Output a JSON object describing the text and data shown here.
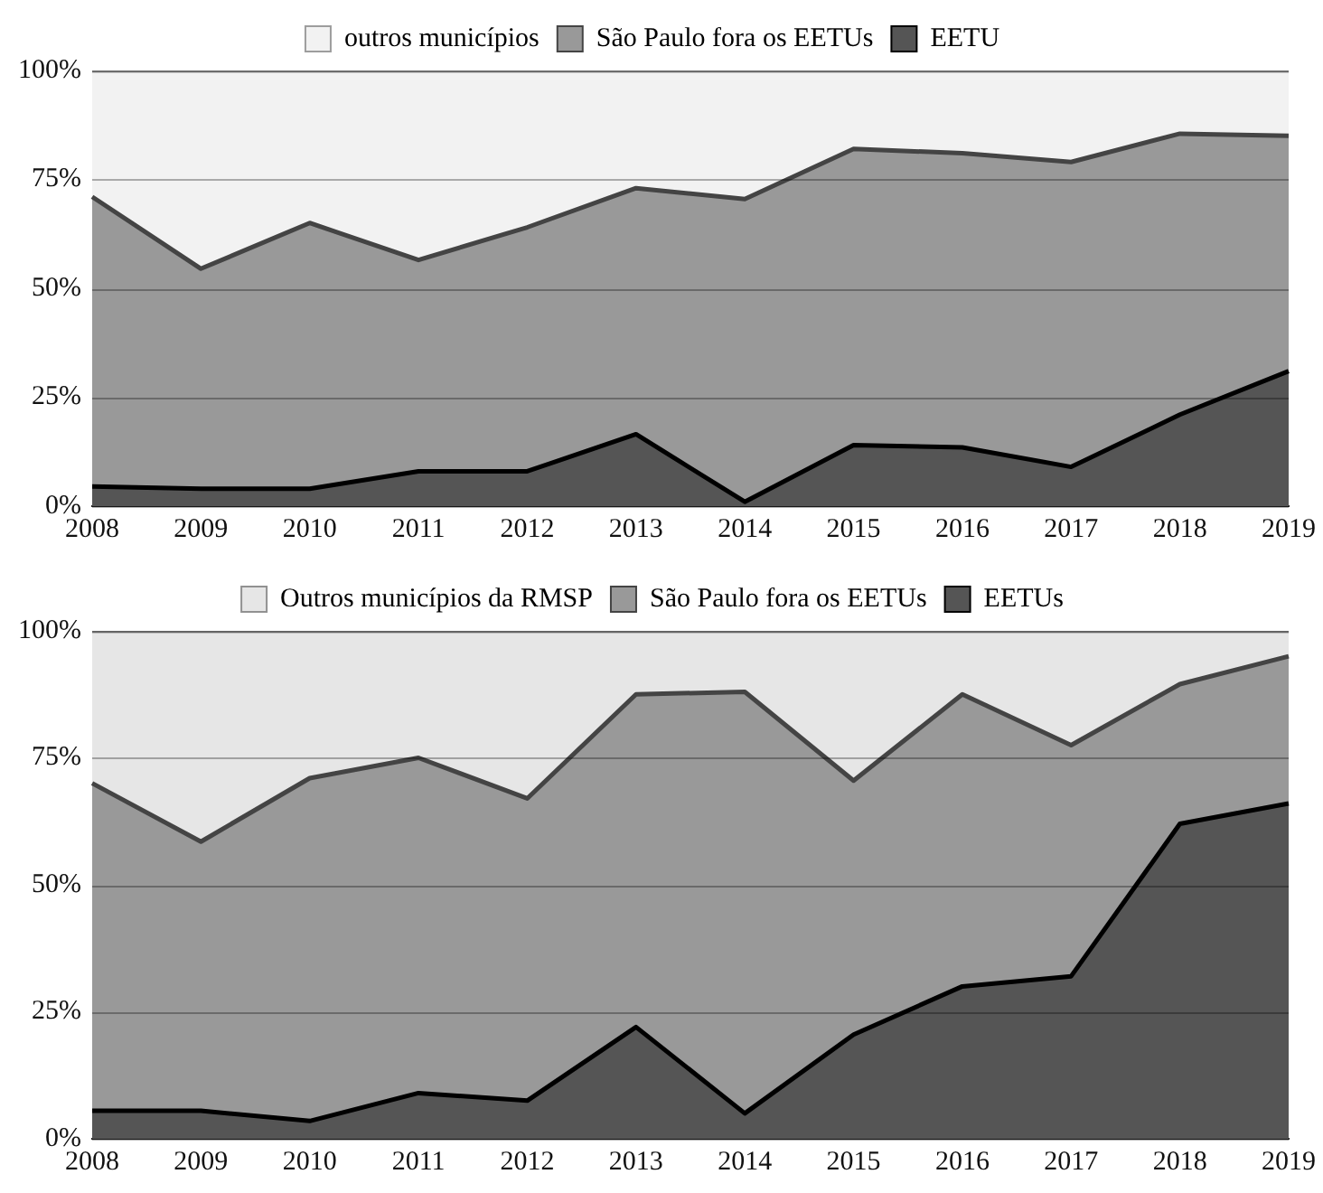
{
  "chart_data": [
    {
      "type": "area",
      "stacked": true,
      "categories": [
        "2008",
        "2009",
        "2010",
        "2011",
        "2012",
        "2013",
        "2014",
        "2015",
        "2016",
        "2017",
        "2018",
        "2019"
      ],
      "series": [
        {
          "name": "EETU",
          "color": "#555555",
          "values": [
            4.5,
            4,
            4,
            8,
            8,
            16.5,
            1,
            14,
            13.5,
            9,
            21,
            31
          ]
        },
        {
          "name": "São Paulo fora os EETUs",
          "color": "#999999",
          "values": [
            66.5,
            50.5,
            61,
            48.5,
            56,
            56.5,
            69.5,
            68,
            67.5,
            70,
            64.5,
            54
          ]
        },
        {
          "name": "outros municípios",
          "color": "#f2f2f2",
          "values": [
            29,
            45.5,
            35,
            43.5,
            36,
            27,
            29.5,
            18,
            19,
            21,
            14.5,
            15
          ]
        }
      ],
      "ylim": [
        0,
        100
      ],
      "yticks": [
        {
          "value": 0,
          "label": "0%"
        },
        {
          "value": 25,
          "label": "25%"
        },
        {
          "value": 50,
          "label": "50%"
        },
        {
          "value": 75,
          "label": "75%"
        },
        {
          "value": 100,
          "label": "100%"
        }
      ],
      "grid": "y",
      "legend": "top",
      "marker": "none"
    },
    {
      "type": "area",
      "stacked": true,
      "categories": [
        "2008",
        "2009",
        "2010",
        "2011",
        "2012",
        "2013",
        "2014",
        "2015",
        "2016",
        "2017",
        "2018",
        "2019"
      ],
      "series": [
        {
          "name": "EETUs",
          "color": "#555555",
          "values": [
            5.5,
            5.5,
            3.5,
            9,
            7.5,
            22,
            5,
            20.5,
            30,
            32,
            62,
            66
          ]
        },
        {
          "name": "São Paulo fora os EETUs",
          "color": "#999999",
          "values": [
            64.5,
            53,
            67.5,
            66,
            59.5,
            65.5,
            83,
            50,
            57.5,
            45.5,
            27.5,
            29
          ]
        },
        {
          "name": "Outros municípios da RMSP",
          "color": "#e6e6e6",
          "values": [
            30,
            41.5,
            29,
            25,
            33,
            12.5,
            12,
            29.5,
            12.5,
            22.5,
            10.5,
            5
          ]
        }
      ],
      "ylim": [
        0,
        100
      ],
      "yticks": [
        {
          "value": 0,
          "label": "0%"
        },
        {
          "value": 25,
          "label": "25%"
        },
        {
          "value": 50,
          "label": "50%"
        },
        {
          "value": 75,
          "label": "75%"
        },
        {
          "value": 100,
          "label": "100%"
        }
      ],
      "grid": "y",
      "legend": "top",
      "marker": "none"
    }
  ]
}
